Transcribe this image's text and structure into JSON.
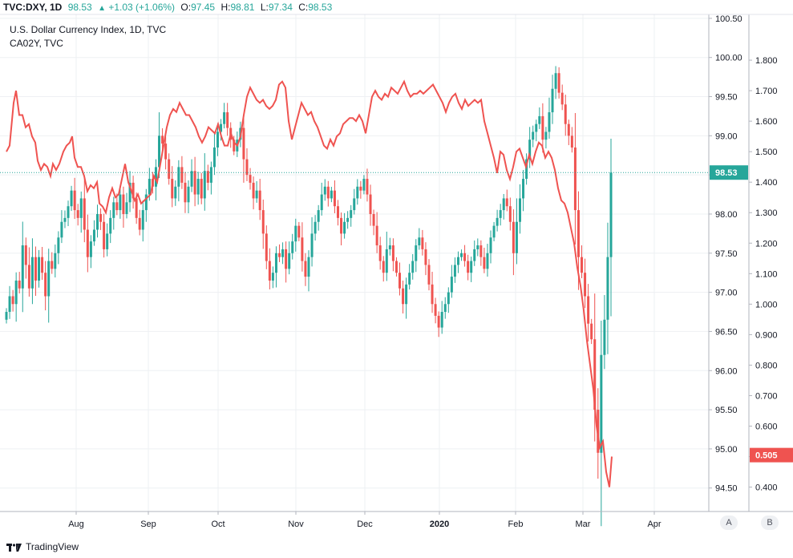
{
  "header": {
    "symbol": "TVC:DXY, 1D",
    "last": "98.53",
    "change": "+1.03 (+1.06%)",
    "o_label": "O:",
    "o_value": "97.45",
    "h_label": "H:",
    "h_value": "98.81",
    "l_label": "L:",
    "l_value": "97.34",
    "c_label": "C:",
    "c_value": "98.53"
  },
  "title": "U.S. Dollar Currency Index, 1D, TVC",
  "overlay_title": "CA02Y, TVC",
  "branding": "TradingView",
  "scale_buttons": [
    "A",
    "B"
  ],
  "colors": {
    "up": "#26a69a",
    "down": "#ef5350",
    "overlay_line": "#ef5350",
    "grid": "#eef0f3",
    "axis_text": "#131722",
    "last_price_label": "#26a69a",
    "overlay_label": "#ef5350"
  },
  "chart_data": {
    "type": "candlestick",
    "x_ticks": [
      "Aug",
      "Sep",
      "Oct",
      "Nov",
      "Dec",
      "2020",
      "Feb",
      "Mar",
      "Apr"
    ],
    "axis_a": {
      "ticks": [
        "100.50",
        "100.00",
        "99.50",
        "99.00",
        "98.50",
        "98.00",
        "97.50",
        "97.00",
        "96.50",
        "96.00",
        "95.50",
        "95.00",
        "94.50"
      ],
      "ylim": [
        94.2,
        100.55
      ]
    },
    "axis_b": {
      "ticks": [
        "1.800",
        "1.700",
        "1.600",
        "1.500",
        "1.400",
        "1.300",
        "1.200",
        "1.100",
        "1.000",
        "0.900",
        "0.800",
        "0.700",
        "0.600",
        "0.500",
        "0.400"
      ],
      "ylim": [
        0.32,
        1.95
      ]
    },
    "last_price": "98.53",
    "overlay_last": "0.505",
    "dxy_closes": [
      96.75,
      96.95,
      96.85,
      97.15,
      97.05,
      97.6,
      97.35,
      97.05,
      97.45,
      97.15,
      97.45,
      97.25,
      96.95,
      97.4,
      97.3,
      97.5,
      97.7,
      97.9,
      97.95,
      98.1,
      98.3,
      98.05,
      97.95,
      98.2,
      97.8,
      97.45,
      97.65,
      97.8,
      98.0,
      97.9,
      97.55,
      97.75,
      97.95,
      98.15,
      98.05,
      98.25,
      98.0,
      98.15,
      98.4,
      98.2,
      97.95,
      97.8,
      98.05,
      98.25,
      98.45,
      98.35,
      98.6,
      99.0,
      98.9,
      98.7,
      98.45,
      98.2,
      98.35,
      98.6,
      98.4,
      98.15,
      98.35,
      98.55,
      98.25,
      98.45,
      98.2,
      98.55,
      98.4,
      98.6,
      98.85,
      99.05,
      99.15,
      99.3,
      99.1,
      98.95,
      98.8,
      98.95,
      99.1,
      98.7,
      98.5,
      98.4,
      98.2,
      98.3,
      98.05,
      97.75,
      97.4,
      97.15,
      97.25,
      97.5,
      97.45,
      97.55,
      97.3,
      97.5,
      97.65,
      97.85,
      97.7,
      97.4,
      97.2,
      97.45,
      97.75,
      97.9,
      98.05,
      98.25,
      98.35,
      98.2,
      98.3,
      98.1,
      97.95,
      97.75,
      97.9,
      97.95,
      98.05,
      98.2,
      98.35,
      98.3,
      98.45,
      98.25,
      98.0,
      97.85,
      97.6,
      97.4,
      97.25,
      97.55,
      97.6,
      97.4,
      97.25,
      97.05,
      96.85,
      97.1,
      97.25,
      97.4,
      97.6,
      97.7,
      97.55,
      97.35,
      97.1,
      96.85,
      96.7,
      96.55,
      96.75,
      96.85,
      97.0,
      97.2,
      97.35,
      97.45,
      97.5,
      97.4,
      97.25,
      97.4,
      97.55,
      97.6,
      97.45,
      97.3,
      97.5,
      97.7,
      97.85,
      97.95,
      98.05,
      98.2,
      98.1,
      97.9,
      97.5,
      97.9,
      98.2,
      98.45,
      98.7,
      98.95,
      99.05,
      99.15,
      99.25,
      98.95,
      99.05,
      99.3,
      99.6,
      99.8,
      99.55,
      99.4,
      99.15,
      99.0,
      98.85,
      98.05,
      97.45,
      97.25,
      96.95,
      96.6,
      96.4,
      95.5,
      94.95,
      96.2,
      96.65,
      97.45,
      98.53
    ]
  }
}
